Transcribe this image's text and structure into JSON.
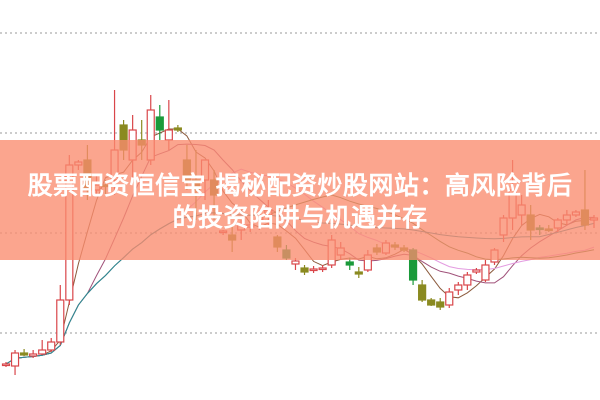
{
  "title": {
    "line1": "股票配资恒信宝 揭秘配资炒股网站：高风险背后",
    "line2": "的投资陷阱与机遇并存"
  },
  "colors": {
    "banner": "#fa8c6e",
    "up": "#d9464a",
    "down": "#8a8a20",
    "down_alt": "#1a9a3a",
    "grid": "#999999"
  },
  "chart_data": {
    "type": "candlestick",
    "title": "",
    "xlabel": "",
    "ylabel": "",
    "ylim": [
      0,
      40
    ],
    "grid": true,
    "grid_style": "dotted horizontal",
    "gridlines": [
      6.7,
      16.7,
      26.7,
      36.7
    ],
    "moving_averages": [
      {
        "period": 5,
        "color": "#8b5a3c"
      },
      {
        "period": 10,
        "color": "#a0527a"
      },
      {
        "period": 20,
        "color": "#e39be0"
      },
      {
        "period": 30,
        "color": "#5a7a3a"
      },
      {
        "period": 60,
        "color": "#2a8a9a"
      }
    ],
    "candles_ohlc": [
      [
        3.5,
        3.8,
        3.3,
        3.6
      ],
      [
        3.4,
        5.0,
        2.5,
        4.7
      ],
      [
        4.7,
        5.1,
        4.4,
        4.5
      ],
      [
        4.4,
        5.0,
        4.2,
        4.6
      ],
      [
        4.6,
        6.0,
        4.5,
        5.0
      ],
      [
        5.0,
        6.2,
        4.8,
        5.8
      ],
      [
        5.8,
        11.5,
        5.5,
        10.0
      ],
      [
        10.0,
        24.5,
        9.5,
        23.5
      ],
      [
        23.5,
        24.0,
        23.0,
        23.8
      ],
      [
        24.0,
        25.5,
        20.0,
        21.0
      ],
      [
        21.0,
        22.5,
        20.5,
        21.5
      ],
      [
        21.5,
        22.0,
        20.5,
        21.4
      ],
      [
        22.0,
        31.0,
        20.5,
        25.0
      ],
      [
        27.5,
        28.0,
        24.0,
        25.0
      ],
      [
        24.0,
        28.5,
        22.0,
        27.0
      ],
      [
        26.0,
        28.0,
        24.0,
        25.5
      ],
      [
        24.0,
        30.5,
        23.5,
        29.0
      ],
      [
        28.3,
        29.5,
        26.0,
        27.0
      ],
      [
        26.0,
        30.0,
        25.0,
        27.0
      ],
      [
        27.2,
        27.5,
        26.8,
        27.0
      ],
      [
        24.0,
        25.5,
        21.0,
        22.0
      ],
      [
        22.0,
        25.0,
        18.0,
        21.0
      ],
      [
        22.0,
        24.0,
        20.0,
        24.0
      ],
      [
        22.0,
        23.0,
        18.0,
        20.5
      ],
      [
        16.8,
        17.0,
        16.5,
        16.9
      ],
      [
        16.5,
        17.5,
        14.8,
        16.0
      ],
      [
        17.0,
        18.0,
        16.0,
        17.5
      ],
      [
        17.3,
        17.8,
        16.8,
        17.5
      ],
      [
        18.0,
        19.0,
        17.0,
        18.5
      ],
      [
        18.5,
        20.0,
        17.5,
        19.0
      ],
      [
        16.3,
        16.5,
        14.8,
        15.3
      ],
      [
        15.0,
        15.5,
        14.0,
        14.2
      ],
      [
        13.6,
        14.2,
        13.0,
        13.9
      ],
      [
        13.2,
        13.5,
        12.5,
        12.8
      ],
      [
        13.0,
        13.4,
        12.7,
        13.1
      ],
      [
        13.1,
        13.5,
        12.8,
        13.2
      ],
      [
        13.5,
        16.5,
        13.2,
        16.0
      ],
      [
        14.5,
        15.8,
        14.0,
        15.2
      ],
      [
        13.8,
        14.2,
        13.0,
        13.5
      ],
      [
        12.8,
        13.3,
        12.2,
        12.6
      ],
      [
        13.0,
        15.0,
        12.8,
        14.5
      ],
      [
        15.2,
        15.6,
        14.5,
        14.8
      ],
      [
        14.7,
        16.0,
        14.5,
        15.7
      ],
      [
        15.5,
        15.8,
        15.0,
        15.3
      ],
      [
        15.2,
        15.5,
        14.8,
        15.0
      ],
      [
        15.0,
        15.2,
        11.5,
        12.0
      ],
      [
        11.5,
        12.0,
        9.8,
        10.0
      ],
      [
        10.0,
        10.2,
        9.4,
        9.5
      ],
      [
        9.8,
        10.2,
        9.0,
        9.3
      ],
      [
        9.5,
        11.2,
        9.2,
        10.8
      ],
      [
        11.0,
        11.8,
        10.5,
        11.5
      ],
      [
        11.5,
        12.8,
        11.0,
        12.5
      ],
      [
        12.8,
        13.2,
        12.6,
        13.0
      ],
      [
        12.0,
        14.0,
        11.8,
        13.5
      ],
      [
        13.8,
        15.2,
        13.5,
        15.0
      ],
      [
        16.5,
        18.5,
        15.8,
        18.2
      ],
      [
        18.2,
        24.0,
        17.0,
        21.0
      ],
      [
        18.5,
        20.5,
        17.5,
        19.5
      ],
      [
        18.5,
        19.5,
        16.0,
        17.0
      ],
      [
        17.2,
        17.5,
        16.5,
        17.1
      ],
      [
        17.1,
        17.5,
        16.8,
        17.0
      ],
      [
        17.2,
        18.2,
        16.8,
        18.0
      ],
      [
        18.0,
        19.0,
        17.5,
        18.5
      ],
      [
        18.5,
        19.0,
        18.3,
        18.8
      ],
      [
        19.0,
        23.0,
        17.0,
        17.5
      ],
      [
        18.0,
        18.5,
        17.2,
        18.2
      ]
    ]
  }
}
